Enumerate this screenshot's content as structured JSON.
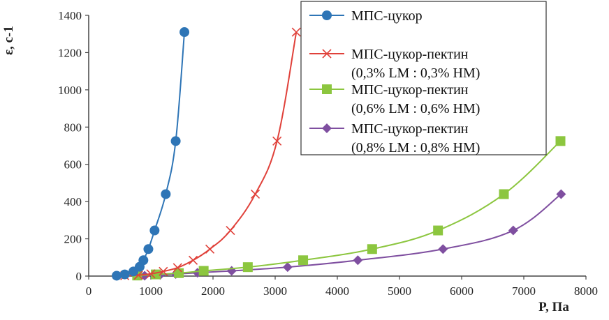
{
  "chart_data": {
    "type": "scatter",
    "xlabel": "P, Па",
    "ylabel": "ε, с-1",
    "xlim": [
      0,
      8000
    ],
    "ylim": [
      0,
      1400
    ],
    "xticks": [
      "0",
      "1000",
      "2000",
      "3000",
      "4000",
      "5000",
      "6000",
      "7000",
      "8000"
    ],
    "yticks": [
      "0",
      "200",
      "400",
      "600",
      "800",
      "1000",
      "1200",
      "1400"
    ],
    "grid": false,
    "legend_position": "top-right",
    "series": [
      {
        "name_lines": [
          "МПС-цукор"
        ],
        "color": "#2e75b6",
        "marker": "circle",
        "points": [
          [
            450,
            2
          ],
          [
            580,
            9
          ],
          [
            720,
            25
          ],
          [
            820,
            50
          ],
          [
            880,
            85
          ],
          [
            960,
            145
          ],
          [
            1060,
            245
          ],
          [
            1240,
            440
          ],
          [
            1400,
            725
          ],
          [
            1540,
            1310
          ]
        ]
      },
      {
        "name_lines": [
          "МПС-цукор-пектин",
          "(0,3% LM : 0,3% HM)"
        ],
        "color": "#e0413a",
        "marker": "x",
        "points": [
          [
            580,
            2
          ],
          [
            800,
            5
          ],
          [
            1000,
            12
          ],
          [
            1200,
            25
          ],
          [
            1430,
            45
          ],
          [
            1680,
            85
          ],
          [
            1950,
            145
          ],
          [
            2280,
            245
          ],
          [
            2680,
            440
          ],
          [
            3030,
            725
          ],
          [
            3340,
            1310
          ]
        ]
      },
      {
        "name_lines": [
          "МПС-цукор-пектин",
          "(0,6% LM : 0,6% HM)"
        ],
        "color": "#8cc63f",
        "marker": "square",
        "points": [
          [
            780,
            3
          ],
          [
            1080,
            9
          ],
          [
            1450,
            16
          ],
          [
            1850,
            28
          ],
          [
            2560,
            48
          ],
          [
            3450,
            85
          ],
          [
            4560,
            145
          ],
          [
            5620,
            245
          ],
          [
            6680,
            440
          ],
          [
            7590,
            725
          ]
        ]
      },
      {
        "name_lines": [
          "МПС-цукор-пектин",
          "(0,8% LM : 0,8% HM)"
        ],
        "color": "#7f4fa0",
        "marker": "diamond",
        "points": [
          [
            900,
            2
          ],
          [
            1150,
            6
          ],
          [
            1400,
            11
          ],
          [
            1750,
            18
          ],
          [
            2300,
            28
          ],
          [
            3200,
            48
          ],
          [
            4330,
            85
          ],
          [
            5700,
            145
          ],
          [
            6830,
            245
          ],
          [
            7600,
            440
          ]
        ]
      }
    ]
  }
}
